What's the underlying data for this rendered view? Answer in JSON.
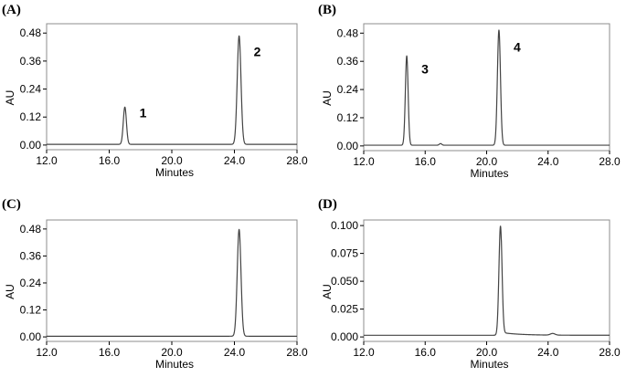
{
  "chart_data": [
    {
      "type": "line",
      "panel": "(A)",
      "xlabel": "Minutes",
      "ylabel": "AU",
      "xlim": [
        12.0,
        28.0
      ],
      "ylim": [
        -0.02,
        0.52
      ],
      "xticks": [
        "12.0",
        "16.0",
        "20.0",
        "24.0",
        "28.0"
      ],
      "xtick_values": [
        12,
        16,
        20,
        24,
        28
      ],
      "yticks": [
        "0.00",
        "0.12",
        "0.24",
        "0.36",
        "0.48"
      ],
      "ytick_values": [
        0,
        0.12,
        0.24,
        0.36,
        0.48
      ],
      "baseline": 0.003,
      "peaks": [
        {
          "label": "1",
          "x": 17.0,
          "height": 0.16,
          "width": 0.1
        },
        {
          "label": "2",
          "x": 24.3,
          "height": 0.465,
          "width": 0.12
        }
      ]
    },
    {
      "type": "line",
      "panel": "(B)",
      "xlabel": "Minutes",
      "ylabel": "AU",
      "xlim": [
        12.0,
        28.0
      ],
      "ylim": [
        -0.02,
        0.52
      ],
      "xticks": [
        "12.0",
        "16.0",
        "20.0",
        "24.0",
        "28.0"
      ],
      "xtick_values": [
        12,
        16,
        20,
        24,
        28
      ],
      "yticks": [
        "0.00",
        "0.12",
        "0.24",
        "0.36",
        "0.48"
      ],
      "ytick_values": [
        0,
        0.12,
        0.24,
        0.36,
        0.48
      ],
      "baseline": 0.003,
      "peaks": [
        {
          "label": "3",
          "x": 14.8,
          "height": 0.38,
          "width": 0.09
        },
        {
          "label": "",
          "x": 17.0,
          "height": 0.007,
          "width": 0.08
        },
        {
          "label": "4",
          "x": 20.8,
          "height": 0.49,
          "width": 0.1
        }
      ]
    },
    {
      "type": "line",
      "panel": "(C)",
      "xlabel": "Minutes",
      "ylabel": "AU",
      "xlim": [
        12.0,
        28.0
      ],
      "ylim": [
        -0.02,
        0.52
      ],
      "xticks": [
        "12.0",
        "16.0",
        "20.0",
        "24.0",
        "28.0"
      ],
      "xtick_values": [
        12,
        16,
        20,
        24,
        28
      ],
      "yticks": [
        "0.00",
        "0.12",
        "0.24",
        "0.36",
        "0.48"
      ],
      "ytick_values": [
        0,
        0.12,
        0.24,
        0.36,
        0.48
      ],
      "baseline": 0.003,
      "peaks": [
        {
          "label": "",
          "x": 24.3,
          "height": 0.475,
          "width": 0.12
        }
      ]
    },
    {
      "type": "line",
      "panel": "(D)",
      "xlabel": "Minutes",
      "ylabel": "AU",
      "xlim": [
        12.0,
        28.0
      ],
      "ylim": [
        -0.004,
        0.105
      ],
      "xticks": [
        "12.0",
        "16.0",
        "20.0",
        "24.0",
        "28.0"
      ],
      "xtick_values": [
        12,
        16,
        20,
        24,
        28
      ],
      "yticks": [
        "0.000",
        "0.025",
        "0.050",
        "0.075",
        "0.100"
      ],
      "ytick_values": [
        0,
        0.025,
        0.05,
        0.075,
        0.1
      ],
      "baseline": 0.0015,
      "tail": {
        "x": 20.95,
        "height": 0.0025,
        "decay": 1.2
      },
      "peaks": [
        {
          "label": "",
          "x": 20.9,
          "height": 0.098,
          "width": 0.1
        },
        {
          "label": "",
          "x": 24.3,
          "height": 0.0015,
          "width": 0.15
        }
      ]
    }
  ]
}
